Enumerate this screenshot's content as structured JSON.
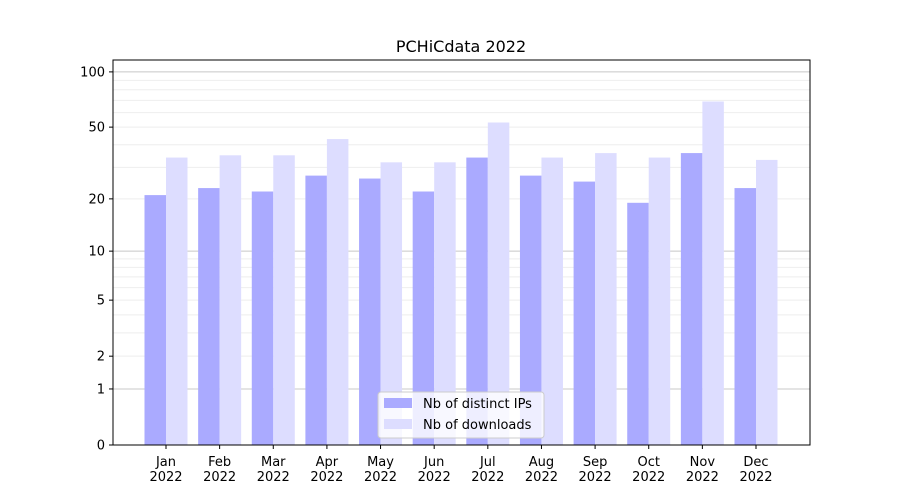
{
  "chart_data": {
    "type": "bar",
    "title": "PCHiCdata 2022",
    "xlabel": "",
    "ylabel": "",
    "yscale": "log(value+1)",
    "ylim": [
      0,
      116
    ],
    "yticks": [
      0,
      1,
      2,
      5,
      10,
      20,
      50,
      100
    ],
    "grid": true,
    "legend_position": "bottom-center",
    "categories": [
      "Jan\n2022",
      "Feb\n2022",
      "Mar\n2022",
      "Apr\n2022",
      "May\n2022",
      "Jun\n2022",
      "Jul\n2022",
      "Aug\n2022",
      "Sep\n2022",
      "Oct\n2022",
      "Nov\n2022",
      "Dec\n2022"
    ],
    "series": [
      {
        "name": "Nb of distinct IPs",
        "color": "#aaaaff",
        "values": [
          21,
          23,
          22,
          27,
          26,
          22,
          34,
          27,
          25,
          19,
          36,
          23
        ]
      },
      {
        "name": "Nb of downloads",
        "color": "#ddddff",
        "values": [
          34,
          35,
          35,
          43,
          32,
          32,
          53,
          34,
          36,
          34,
          69,
          33
        ]
      }
    ]
  }
}
